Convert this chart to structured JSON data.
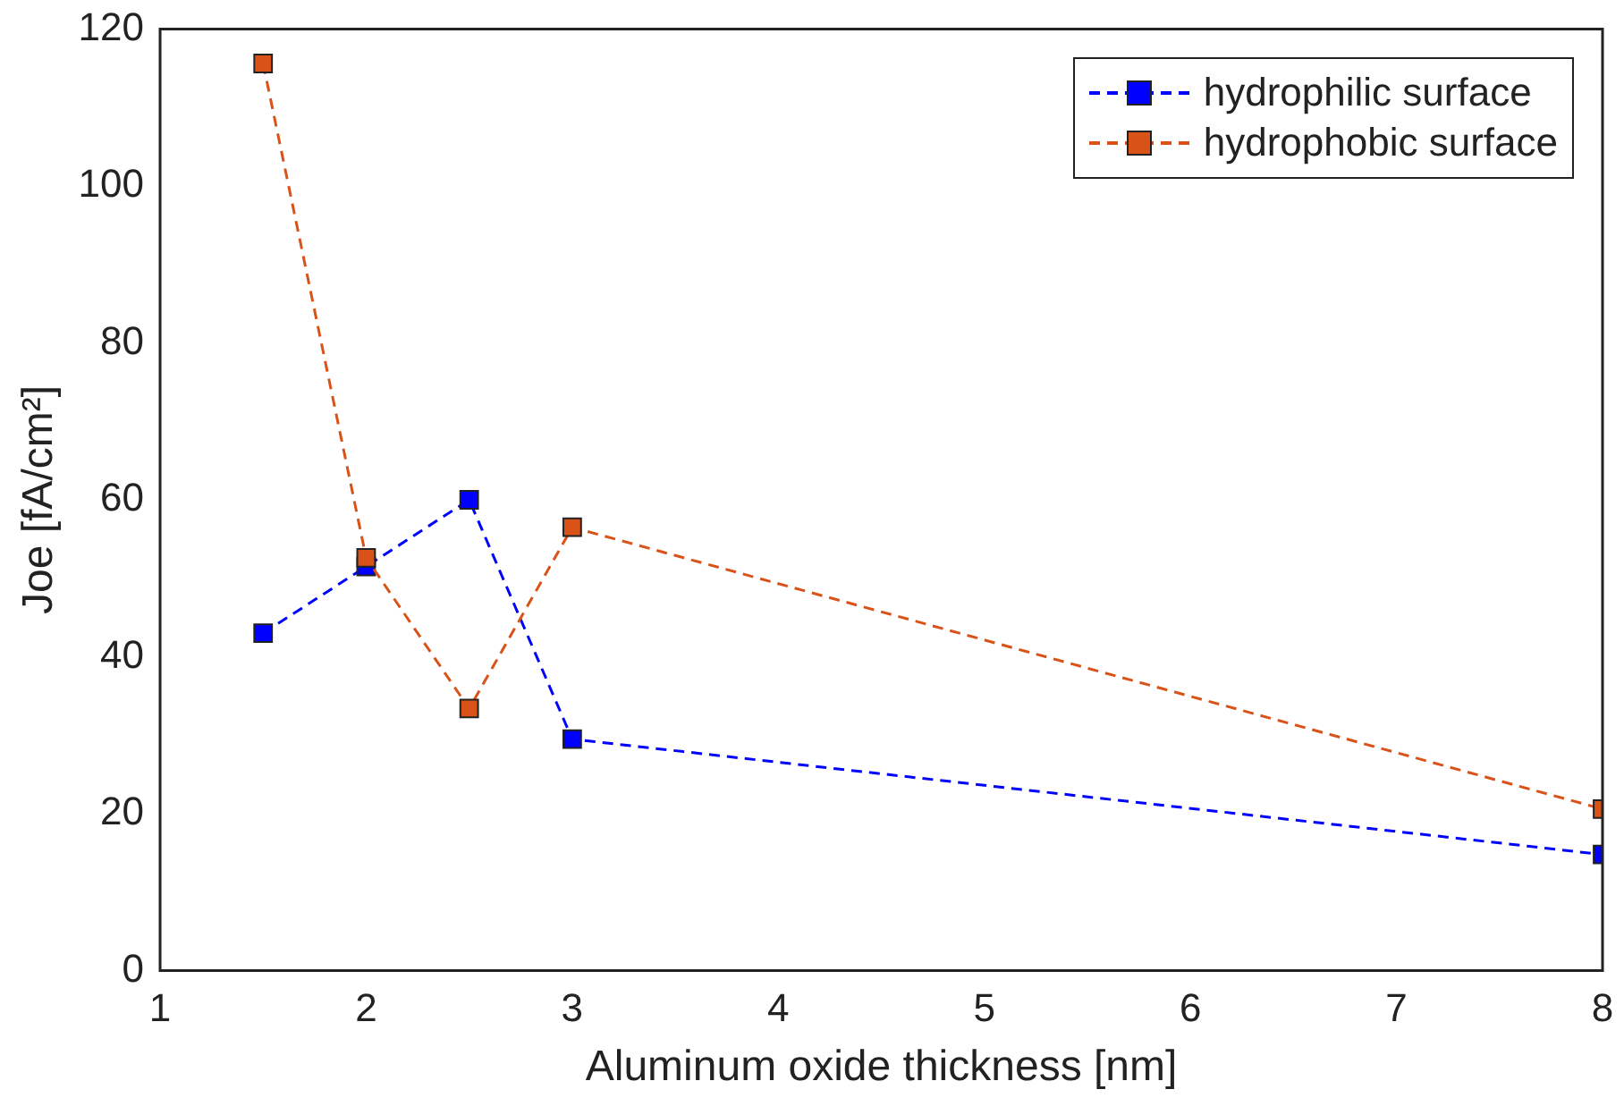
{
  "chart_data": {
    "type": "line",
    "xlabel": "Aluminum oxide thickness [nm]",
    "ylabel": "Joe [fA/cm²]",
    "xlim": [
      1,
      8
    ],
    "xticks": [
      1,
      2,
      3,
      4,
      5,
      6,
      7,
      8
    ],
    "ylim": [
      0,
      120
    ],
    "yticks": [
      0,
      20,
      40,
      60,
      80,
      100,
      120
    ],
    "x": [
      1.5,
      2,
      2.5,
      3,
      8
    ],
    "series": [
      {
        "name": "hydrophilic surface",
        "color": "#0000ff",
        "values": [
          43,
          51.5,
          60,
          29.5,
          14.8
        ]
      },
      {
        "name": "hydrophobic surface",
        "color": "#d95319",
        "values": [
          115.6,
          52.6,
          33.4,
          56.5,
          20.6
        ]
      }
    ],
    "marker": "square",
    "line_style": "dashed",
    "grid": false,
    "legend": "top right"
  }
}
